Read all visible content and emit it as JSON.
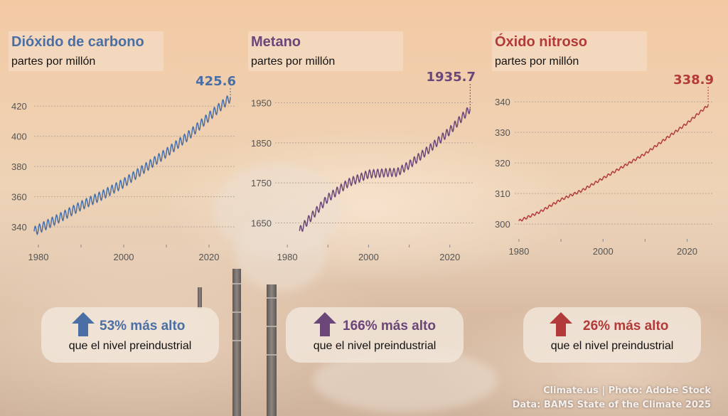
{
  "colors": {
    "co2": "#4a6fa5",
    "ch4": "#6b4678",
    "n2o": "#b23a38"
  },
  "chart_data": [
    {
      "type": "line",
      "title": "Dióxido de carbono",
      "subtitle": "partes por millón",
      "x_ticks": [
        1980,
        2000,
        2020
      ],
      "y_ticks": [
        340,
        360,
        380,
        400,
        420
      ],
      "xlim": [
        1979,
        2026
      ],
      "ylim": [
        332,
        430
      ],
      "last_value_label": "425.6",
      "seasonal_amplitude": 3,
      "series": [
        {
          "x": [
            1979,
            1985,
            1990,
            1995,
            2000,
            2005,
            2010,
            2015,
            2020,
            2025
          ],
          "values": [
            337,
            346,
            354,
            361,
            369,
            379,
            389,
            400,
            413,
            425.6
          ]
        }
      ]
    },
    {
      "type": "line",
      "title": "Metano",
      "subtitle": "partes por millón",
      "x_ticks": [
        1980,
        2000,
        2020
      ],
      "y_ticks": [
        1650,
        1750,
        1850,
        1950
      ],
      "xlim": [
        1977,
        2026
      ],
      "ylim": [
        1610,
        1990
      ],
      "last_value_label": "1935.7",
      "seasonal_amplitude": 10,
      "series": [
        {
          "x": [
            1983,
            1985,
            1990,
            1995,
            2000,
            2005,
            2007,
            2010,
            2015,
            2020,
            2025
          ],
          "values": [
            1630,
            1655,
            1712,
            1750,
            1772,
            1776,
            1776,
            1795,
            1835,
            1880,
            1935.7
          ]
        }
      ]
    },
    {
      "type": "line",
      "title": "Óxido nitroso",
      "subtitle": "partes por millón",
      "x_ticks": [
        1980,
        2000,
        2020
      ],
      "y_ticks": [
        300,
        310,
        320,
        330,
        340
      ],
      "xlim": [
        1979,
        2026
      ],
      "ylim": [
        297,
        344
      ],
      "last_value_label": "338.9",
      "seasonal_amplitude": 0.4,
      "series": [
        {
          "x": [
            1980,
            1985,
            1990,
            1995,
            2000,
            2005,
            2010,
            2015,
            2020,
            2025
          ],
          "values": [
            301,
            304,
            308,
            311,
            315,
            319,
            323,
            328,
            333,
            338.9
          ]
        }
      ]
    }
  ],
  "callouts": [
    {
      "pct": "53% más alto",
      "note": "que el nivel preindustrial"
    },
    {
      "pct": "166% más alto",
      "note": "que el nivel preindustrial"
    },
    {
      "pct": "26% más alto",
      "note": "que el nivel preindustrial"
    }
  ],
  "credit": {
    "line1": "Climate.us | Photo: Adobe Stock",
    "line2": "Data: BAMS State of the Climate 2025"
  }
}
